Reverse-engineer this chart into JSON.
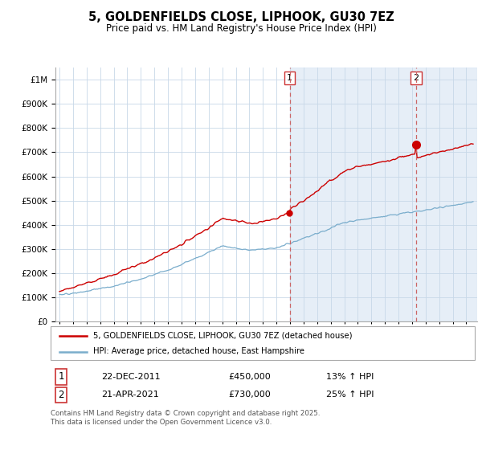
{
  "title": "5, GOLDENFIELDS CLOSE, LIPHOOK, GU30 7EZ",
  "subtitle": "Price paid vs. HM Land Registry's House Price Index (HPI)",
  "legend_line1": "5, GOLDENFIELDS CLOSE, LIPHOOK, GU30 7EZ (detached house)",
  "legend_line2": "HPI: Average price, detached house, East Hampshire",
  "footer": "Contains HM Land Registry data © Crown copyright and database right 2025.\nThis data is licensed under the Open Government Licence v3.0.",
  "red_color": "#cc0000",
  "blue_color": "#7aadcc",
  "vline_color": "#cc6666",
  "shade_color": "#dce8f5",
  "ylim": [
    0,
    1050000
  ],
  "xmin": 1994.7,
  "xmax": 2025.8,
  "sale1_x": 2011.97,
  "sale2_x": 2021.3,
  "sale1_y": 450000,
  "sale2_y": 730000
}
